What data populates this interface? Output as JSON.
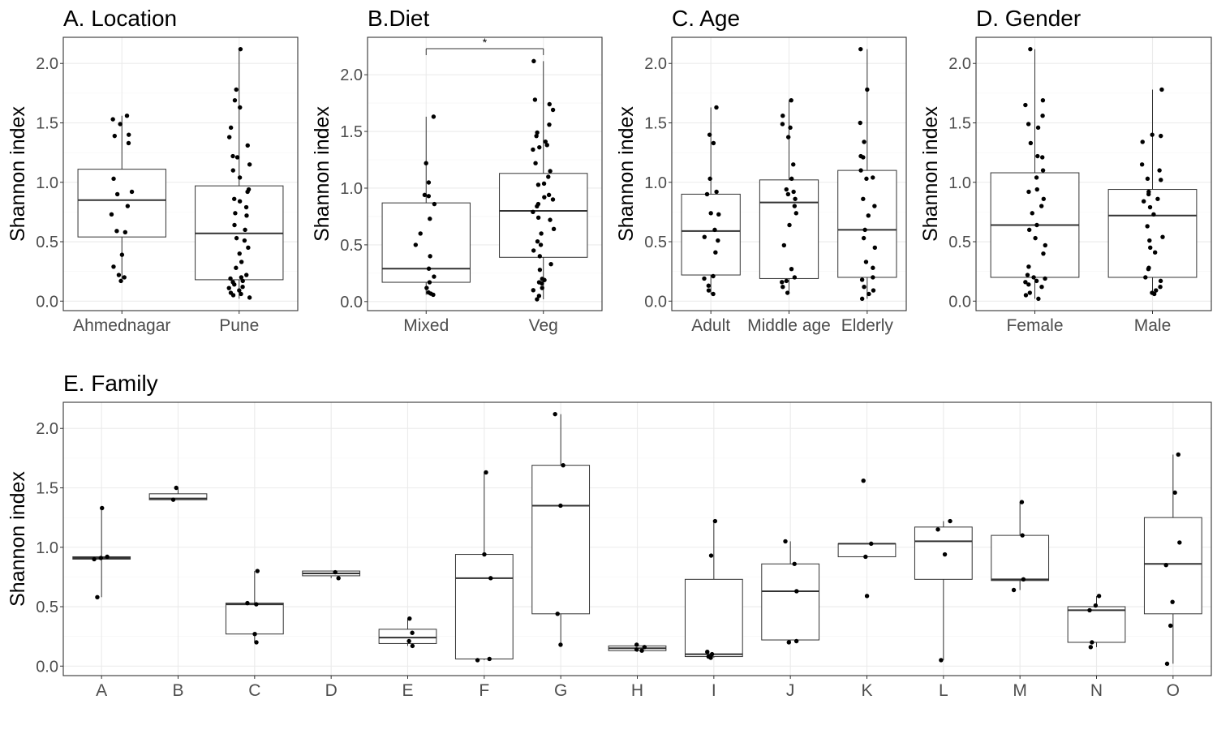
{
  "chart_data": [
    {
      "id": "A",
      "type": "box",
      "title": "A. Location",
      "ylabel": "Shannon index",
      "ylim": [
        -0.08,
        2.22
      ],
      "yticks": [
        "0.0",
        "0.5",
        "1.0",
        "1.5",
        "2.0"
      ],
      "categories": [
        "Ahmednagar",
        "Pune"
      ],
      "boxes": [
        {
          "category": "Ahmednagar",
          "min": 0.17,
          "q1": 0.54,
          "median": 0.85,
          "q3": 1.11,
          "max": 1.56,
          "points": [
            1.56,
            1.53,
            1.49,
            1.4,
            1.39,
            1.33,
            1.03,
            0.92,
            0.9,
            0.8,
            0.73,
            0.59,
            0.58,
            0.39,
            0.29,
            0.22,
            0.2,
            0.17
          ]
        },
        {
          "category": "Pune",
          "min": 0.02,
          "q1": 0.18,
          "median": 0.57,
          "q3": 0.97,
          "max": 2.12,
          "points": [
            2.12,
            1.78,
            1.69,
            1.63,
            1.46,
            1.38,
            1.31,
            1.22,
            1.21,
            1.15,
            1.1,
            1.04,
            0.94,
            0.92,
            0.86,
            0.84,
            0.79,
            0.74,
            0.72,
            0.64,
            0.6,
            0.53,
            0.51,
            0.45,
            0.4,
            0.33,
            0.28,
            0.22,
            0.2,
            0.19,
            0.17,
            0.16,
            0.14,
            0.12,
            0.11,
            0.09,
            0.07,
            0.06,
            0.05,
            0.03
          ]
        }
      ]
    },
    {
      "id": "B",
      "type": "box",
      "title": "B.Diet",
      "ylabel": "Shannon index",
      "ylim": [
        -0.08,
        2.33
      ],
      "yticks": [
        "0.0",
        "0.5",
        "1.0",
        "1.5",
        "2.0"
      ],
      "categories": [
        "Mixed",
        "Veg"
      ],
      "significance": {
        "label": "*",
        "from": "Mixed",
        "to": "Veg",
        "y": 2.23
      },
      "boxes": [
        {
          "category": "Mixed",
          "min": 0.06,
          "q1": 0.17,
          "median": 0.29,
          "q3": 0.87,
          "max": 1.63,
          "points": [
            1.63,
            1.22,
            1.05,
            0.94,
            0.93,
            0.86,
            0.73,
            0.6,
            0.5,
            0.4,
            0.29,
            0.22,
            0.17,
            0.12,
            0.08,
            0.07,
            0.06
          ]
        },
        {
          "category": "Veg",
          "min": 0.02,
          "q1": 0.39,
          "median": 0.8,
          "q3": 1.13,
          "max": 2.12,
          "points": [
            2.12,
            1.78,
            1.74,
            1.69,
            1.56,
            1.49,
            1.46,
            1.41,
            1.38,
            1.36,
            1.34,
            1.22,
            1.15,
            1.1,
            1.04,
            1.03,
            0.94,
            0.92,
            0.9,
            0.86,
            0.84,
            0.79,
            0.74,
            0.72,
            0.64,
            0.6,
            0.53,
            0.5,
            0.45,
            0.4,
            0.33,
            0.28,
            0.2,
            0.19,
            0.17,
            0.16,
            0.12,
            0.1,
            0.05,
            0.02
          ]
        }
      ]
    },
    {
      "id": "C",
      "type": "box",
      "title": "C. Age",
      "ylabel": "Shannon index",
      "ylim": [
        -0.08,
        2.22
      ],
      "yticks": [
        "0.0",
        "0.5",
        "1.0",
        "1.5",
        "2.0"
      ],
      "categories": [
        "Adult",
        "Middle age",
        "Elderly"
      ],
      "boxes": [
        {
          "category": "Adult",
          "min": 0.06,
          "q1": 0.22,
          "median": 0.59,
          "q3": 0.9,
          "max": 1.63,
          "points": [
            1.63,
            1.4,
            1.33,
            1.03,
            0.92,
            0.9,
            0.74,
            0.73,
            0.6,
            0.54,
            0.51,
            0.41,
            0.21,
            0.19,
            0.13,
            0.09,
            0.06
          ]
        },
        {
          "category": "Middle age",
          "min": 0.07,
          "q1": 0.19,
          "median": 0.83,
          "q3": 1.02,
          "max": 1.69,
          "points": [
            1.69,
            1.56,
            1.49,
            1.46,
            1.38,
            1.15,
            1.03,
            0.94,
            0.92,
            0.9,
            0.86,
            0.8,
            0.74,
            0.64,
            0.47,
            0.27,
            0.2,
            0.17,
            0.16,
            0.12,
            0.07
          ]
        },
        {
          "category": "Elderly",
          "min": 0.02,
          "q1": 0.2,
          "median": 0.6,
          "q3": 1.1,
          "max": 2.12,
          "points": [
            2.12,
            1.78,
            1.5,
            1.34,
            1.22,
            1.21,
            1.1,
            1.04,
            1.03,
            0.86,
            0.8,
            0.72,
            0.6,
            0.53,
            0.45,
            0.33,
            0.28,
            0.2,
            0.18,
            0.12,
            0.09,
            0.06,
            0.02
          ]
        }
      ]
    },
    {
      "id": "D",
      "type": "box",
      "title": "D. Gender",
      "ylabel": "Shannon index",
      "ylim": [
        -0.08,
        2.22
      ],
      "yticks": [
        "0.0",
        "0.5",
        "1.0",
        "1.5",
        "2.0"
      ],
      "categories": [
        "Female",
        "Male"
      ],
      "boxes": [
        {
          "category": "Female",
          "min": 0.02,
          "q1": 0.2,
          "median": 0.64,
          "q3": 1.08,
          "max": 2.12,
          "points": [
            2.12,
            1.69,
            1.65,
            1.56,
            1.49,
            1.46,
            1.33,
            1.22,
            1.21,
            1.1,
            1.04,
            0.94,
            0.92,
            0.86,
            0.8,
            0.74,
            0.64,
            0.6,
            0.53,
            0.47,
            0.4,
            0.29,
            0.22,
            0.2,
            0.19,
            0.17,
            0.16,
            0.14,
            0.12,
            0.07,
            0.05,
            0.02
          ]
        },
        {
          "category": "Male",
          "min": 0.06,
          "q1": 0.2,
          "median": 0.72,
          "q3": 0.94,
          "max": 1.78,
          "points": [
            1.78,
            1.4,
            1.39,
            1.34,
            1.15,
            1.1,
            1.03,
            1.02,
            0.92,
            0.9,
            0.86,
            0.84,
            0.79,
            0.73,
            0.63,
            0.54,
            0.51,
            0.45,
            0.41,
            0.28,
            0.27,
            0.2,
            0.17,
            0.12,
            0.09,
            0.07,
            0.06
          ]
        }
      ]
    },
    {
      "id": "E",
      "type": "box",
      "title": "E. Family",
      "ylabel": "Shannon index",
      "ylim": [
        -0.08,
        2.22
      ],
      "yticks": [
        "0.0",
        "0.5",
        "1.0",
        "1.5",
        "2.0"
      ],
      "categories": [
        "A",
        "B",
        "C",
        "D",
        "E",
        "F",
        "G",
        "H",
        "I",
        "J",
        "K",
        "L",
        "M",
        "N",
        "O"
      ],
      "boxes": [
        {
          "category": "A",
          "min": 0.58,
          "q1": 0.9,
          "median": 0.91,
          "q3": 0.92,
          "max": 1.33,
          "points": [
            1.33,
            0.92,
            0.91,
            0.9,
            0.58
          ]
        },
        {
          "category": "B",
          "min": 1.4,
          "q1": 1.4,
          "median": 1.41,
          "q3": 1.45,
          "max": 1.5,
          "points": [
            1.5,
            1.4
          ]
        },
        {
          "category": "C",
          "min": 0.2,
          "q1": 0.27,
          "median": 0.52,
          "q3": 0.53,
          "max": 0.8,
          "points": [
            0.8,
            0.53,
            0.52,
            0.27,
            0.2
          ]
        },
        {
          "category": "D",
          "min": 0.74,
          "q1": 0.76,
          "median": 0.78,
          "q3": 0.8,
          "max": 0.8,
          "points": [
            0.79,
            0.74
          ]
        },
        {
          "category": "E",
          "min": 0.17,
          "q1": 0.19,
          "median": 0.24,
          "q3": 0.31,
          "max": 0.4,
          "points": [
            0.4,
            0.28,
            0.21,
            0.17
          ]
        },
        {
          "category": "F",
          "min": 0.05,
          "q1": 0.06,
          "median": 0.74,
          "q3": 0.94,
          "max": 1.63,
          "points": [
            1.63,
            0.94,
            0.74,
            0.06,
            0.05
          ]
        },
        {
          "category": "G",
          "min": 0.18,
          "q1": 0.44,
          "median": 1.35,
          "q3": 1.69,
          "max": 2.12,
          "points": [
            2.12,
            1.69,
            1.35,
            0.44,
            0.18
          ]
        },
        {
          "category": "H",
          "min": 0.12,
          "q1": 0.13,
          "median": 0.15,
          "q3": 0.17,
          "max": 0.18,
          "points": [
            0.18,
            0.16,
            0.14,
            0.13
          ]
        },
        {
          "category": "I",
          "min": 0.07,
          "q1": 0.08,
          "median": 0.1,
          "q3": 0.73,
          "max": 1.22,
          "points": [
            1.22,
            0.93,
            0.12,
            0.1,
            0.08,
            0.07
          ]
        },
        {
          "category": "J",
          "min": 0.2,
          "q1": 0.22,
          "median": 0.63,
          "q3": 0.86,
          "max": 1.05,
          "points": [
            1.05,
            0.86,
            0.63,
            0.21,
            0.2
          ]
        },
        {
          "category": "K",
          "min": 0.92,
          "q1": 0.92,
          "median": 1.03,
          "q3": 1.03,
          "max": 1.03,
          "points": [
            1.56,
            1.03,
            0.92,
            0.59
          ]
        },
        {
          "category": "L",
          "min": 0.05,
          "q1": 0.73,
          "median": 1.05,
          "q3": 1.17,
          "max": 1.22,
          "points": [
            1.22,
            1.15,
            0.94,
            0.05
          ]
        },
        {
          "category": "M",
          "min": 0.64,
          "q1": 0.72,
          "median": 0.73,
          "q3": 1.1,
          "max": 1.38,
          "points": [
            1.38,
            1.1,
            0.73,
            0.64
          ]
        },
        {
          "category": "N",
          "min": 0.16,
          "q1": 0.2,
          "median": 0.47,
          "q3": 0.5,
          "max": 0.59,
          "points": [
            0.59,
            0.51,
            0.47,
            0.2,
            0.16
          ]
        },
        {
          "category": "O",
          "min": 0.02,
          "q1": 0.44,
          "median": 0.86,
          "q3": 1.25,
          "max": 1.78,
          "points": [
            1.78,
            1.46,
            1.04,
            0.85,
            0.54,
            0.34,
            0.02
          ]
        }
      ]
    }
  ]
}
